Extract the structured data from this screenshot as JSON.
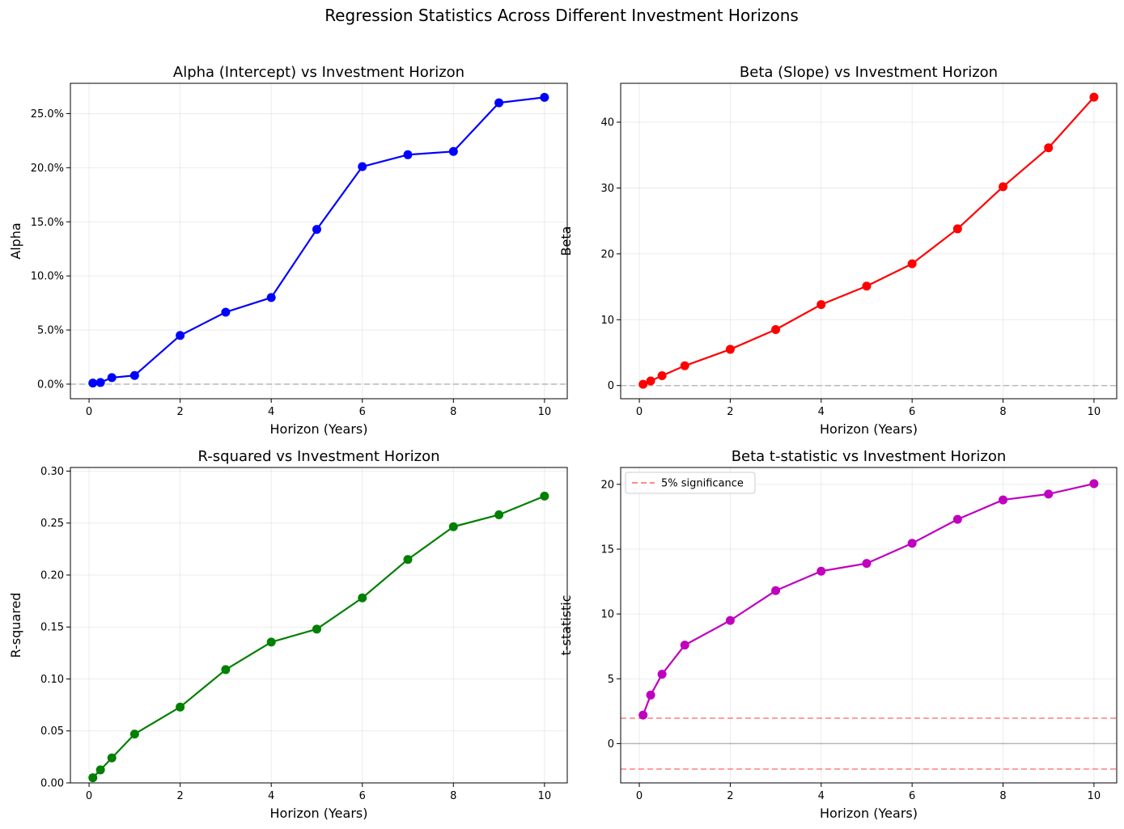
{
  "figure": {
    "title": "Regression Statistics Across Different Investment Horizons"
  },
  "chart_data": [
    {
      "type": "line",
      "title": "Alpha (Intercept) vs Investment Horizon",
      "xlabel": "Horizon (Years)",
      "ylabel": "Alpha",
      "x": [
        0.083,
        0.25,
        0.5,
        1,
        2,
        3,
        4,
        5,
        6,
        7,
        8,
        9,
        10
      ],
      "series": [
        {
          "values": [
            0.001,
            0.0015,
            0.006,
            0.008,
            0.045,
            0.0665,
            0.08,
            0.143,
            0.201,
            0.212,
            0.215,
            0.26,
            0.265
          ],
          "color": "#0000ff"
        }
      ],
      "xlim": [
        -0.41,
        10.5
      ],
      "ylim": [
        -0.0135,
        0.278
      ],
      "xticks": [
        0,
        2,
        4,
        6,
        8,
        10
      ],
      "yticks": [
        0,
        0.05,
        0.1,
        0.15,
        0.2,
        0.25
      ],
      "ytick_labels": [
        "0.0%",
        "5.0%",
        "10.0%",
        "15.0%",
        "20.0%",
        "25.0%"
      ],
      "ref_lines": [
        {
          "y": 0,
          "color": "#808080",
          "dash": "7,4",
          "opacity": 0.5
        }
      ],
      "grid": true
    },
    {
      "type": "line",
      "title": "Beta (Slope) vs Investment Horizon",
      "xlabel": "Horizon (Years)",
      "ylabel": "Beta",
      "x": [
        0.083,
        0.25,
        0.5,
        1,
        2,
        3,
        4,
        5,
        6,
        7,
        8,
        9,
        10
      ],
      "series": [
        {
          "values": [
            0.2,
            0.7,
            1.5,
            3.0,
            5.5,
            8.5,
            12.3,
            15.1,
            18.5,
            23.8,
            30.2,
            36.1,
            43.8
          ],
          "color": "#ff0000"
        }
      ],
      "xlim": [
        -0.41,
        10.5
      ],
      "ylim": [
        -2.0,
        45.9
      ],
      "xticks": [
        0,
        2,
        4,
        6,
        8,
        10
      ],
      "yticks": [
        0,
        10,
        20,
        30,
        40
      ],
      "ytick_labels": [
        "0",
        "10",
        "20",
        "30",
        "40"
      ],
      "ref_lines": [
        {
          "y": 0,
          "color": "#808080",
          "dash": "7,4",
          "opacity": 0.5
        }
      ],
      "grid": true
    },
    {
      "type": "line",
      "title": "R-squared vs Investment Horizon",
      "xlabel": "Horizon (Years)",
      "ylabel": "R-squared",
      "x": [
        0.083,
        0.25,
        0.5,
        1,
        2,
        3,
        4,
        5,
        6,
        7,
        8,
        9,
        10
      ],
      "series": [
        {
          "values": [
            0.005,
            0.0125,
            0.024,
            0.047,
            0.073,
            0.109,
            0.1355,
            0.148,
            0.178,
            0.215,
            0.2465,
            0.258,
            0.276
          ],
          "color": "#008000"
        }
      ],
      "xlim": [
        -0.41,
        10.5
      ],
      "ylim": [
        0,
        0.3035
      ],
      "xticks": [
        0,
        2,
        4,
        6,
        8,
        10
      ],
      "yticks": [
        0,
        0.05,
        0.1,
        0.15,
        0.2,
        0.25,
        0.3
      ],
      "ytick_labels": [
        "0.00",
        "0.05",
        "0.10",
        "0.15",
        "0.20",
        "0.25",
        "0.30"
      ],
      "ref_lines": [],
      "grid": true
    },
    {
      "type": "line",
      "title": "Beta t-statistic vs Investment Horizon",
      "xlabel": "Horizon (Years)",
      "ylabel": "t-statistic",
      "x": [
        0.083,
        0.25,
        0.5,
        1,
        2,
        3,
        4,
        5,
        6,
        7,
        8,
        9,
        10
      ],
      "series": [
        {
          "values": [
            2.2,
            3.75,
            5.35,
            7.6,
            9.5,
            11.8,
            13.3,
            13.9,
            15.45,
            17.3,
            18.8,
            19.25,
            20.05
          ],
          "color": "#bf00bf"
        }
      ],
      "xlim": [
        -0.41,
        10.5
      ],
      "ylim": [
        -3.03,
        21.3
      ],
      "xticks": [
        0,
        2,
        4,
        6,
        8,
        10
      ],
      "yticks": [
        0,
        5,
        10,
        15,
        20
      ],
      "ytick_labels": [
        "0",
        "5",
        "10",
        "15",
        "20"
      ],
      "ref_lines": [
        {
          "y": 0,
          "color": "#808080",
          "dash": "",
          "opacity": 0.5
        },
        {
          "y": 1.96,
          "color": "#ff0000",
          "dash": "7,4",
          "opacity": 0.5
        },
        {
          "y": -1.96,
          "color": "#ff0000",
          "dash": "7,4",
          "opacity": 0.5
        }
      ],
      "legend": {
        "label": "5% significance",
        "position": "upper-left",
        "color": "#ff0000"
      },
      "grid": true
    }
  ]
}
